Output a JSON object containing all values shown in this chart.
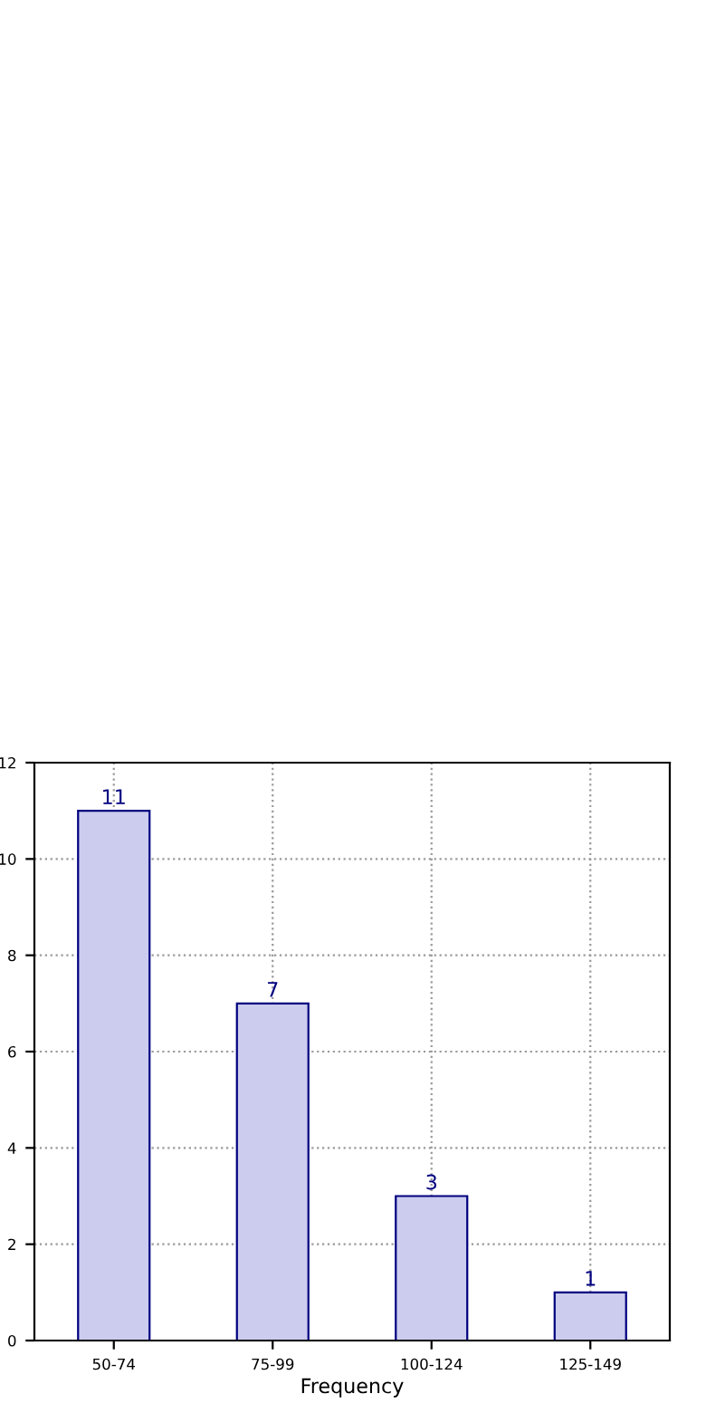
{
  "chart_data": {
    "type": "bar",
    "xlabel": "Frequency",
    "categories": [
      "50-74",
      "75-99",
      "100-124",
      "125-149"
    ],
    "values": [
      11,
      7,
      3,
      1
    ],
    "color": "#ccccee",
    "ylim": [
      0,
      12
    ],
    "yticks": [
      0,
      2,
      4,
      6,
      8,
      10,
      12
    ],
    "grid": true,
    "data_labels": true
  }
}
